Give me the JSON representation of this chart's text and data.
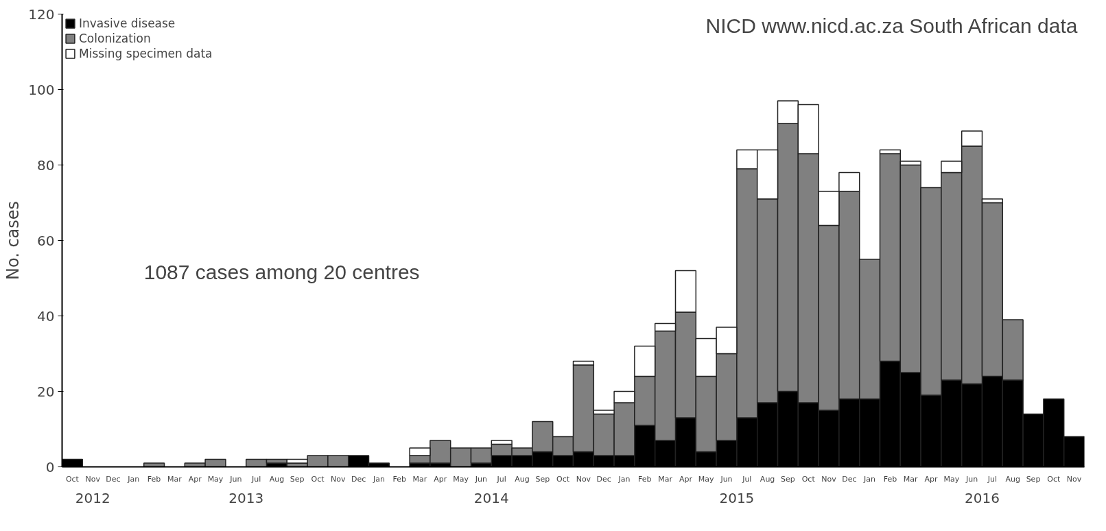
{
  "chart_data": {
    "type": "bar",
    "stacked": true,
    "ylabel": "No. cases",
    "categories": [
      "Oct",
      "Nov",
      "Dec",
      "Jan",
      "Feb",
      "Mar",
      "Apr",
      "May",
      "Jun",
      "Jul",
      "Aug",
      "Sep",
      "Oct",
      "Nov",
      "Dec",
      "Jan",
      "Feb",
      "Mar",
      "Apr",
      "May",
      "Jun",
      "Jul",
      "Aug",
      "Sep",
      "Oct",
      "Nov",
      "Dec",
      "Jan",
      "Feb",
      "Mar",
      "Apr",
      "May",
      "Jun",
      "Jul",
      "Aug",
      "Sep",
      "Oct",
      "Nov",
      "Dec",
      "Jan",
      "Feb",
      "Mar",
      "Apr",
      "May",
      "Jun",
      "Jul",
      "Aug",
      "Sep",
      "Oct",
      "Nov"
    ],
    "series": [
      {
        "name": "Invasive disease",
        "color": "#000000",
        "values": [
          2,
          0,
          0,
          0,
          0,
          0,
          0,
          0,
          0,
          0,
          1,
          0,
          0,
          0,
          3,
          1,
          0,
          1,
          1,
          0,
          1,
          3,
          3,
          4,
          3,
          4,
          3,
          3,
          11,
          7,
          13,
          4,
          7,
          13,
          17,
          20,
          17,
          15,
          18,
          18,
          28,
          25,
          19,
          23,
          22,
          24,
          23,
          14,
          18,
          8
        ]
      },
      {
        "name": "Colonization",
        "color": "#808080",
        "values": [
          0,
          0,
          0,
          0,
          1,
          0,
          1,
          2,
          0,
          2,
          1,
          1,
          3,
          3,
          0,
          0,
          0,
          2,
          6,
          5,
          4,
          3,
          2,
          8,
          5,
          23,
          11,
          14,
          13,
          29,
          28,
          20,
          23,
          66,
          54,
          71,
          66,
          49,
          55,
          37,
          55,
          55,
          55,
          55,
          63,
          46,
          16,
          0,
          0,
          0
        ]
      },
      {
        "name": "Missing specimen data",
        "color": "#ffffff",
        "values": [
          0,
          0,
          0,
          0,
          0,
          0,
          0,
          0,
          0,
          0,
          0,
          1,
          0,
          0,
          0,
          0,
          0,
          2,
          0,
          0,
          0,
          1,
          0,
          0,
          0,
          1,
          1,
          3,
          8,
          2,
          11,
          10,
          7,
          5,
          13,
          6,
          13,
          9,
          5,
          0,
          1,
          1,
          0,
          3,
          4,
          1,
          0,
          0,
          0,
          0
        ]
      }
    ],
    "ylim": [
      0,
      120
    ],
    "yticks": [
      0,
      20,
      40,
      60,
      80,
      100,
      120
    ],
    "grid": false,
    "legend": "top left",
    "annotations": [
      "NICD www.nicd.ac.za  South African data",
      "1087 cases among 20 centres",
      "2012",
      "2013",
      "2014",
      "2015",
      "2016"
    ]
  }
}
